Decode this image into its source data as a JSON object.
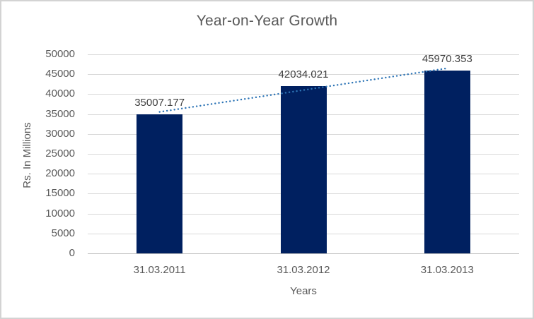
{
  "chart": {
    "colors": {
      "bar": "#002060",
      "trendline": "#2e75b6",
      "title_text": "#595959",
      "axis_text": "#595959",
      "data_label_text": "#404040",
      "gridline": "#d9d9d9",
      "axis_line": "#bfbfbf",
      "frame_border": "#d3d3d3",
      "background": "#ffffff"
    }
  },
  "chart_data": {
    "type": "bar",
    "title": "Year-on-Year Growth",
    "xlabel": "Years",
    "ylabel": "Rs. In Millions",
    "categories": [
      "31.03.2011",
      "31.03.2012",
      "31.03.2013"
    ],
    "values": [
      35007.177,
      42034.021,
      45970.353
    ],
    "data_labels": [
      "35007.177",
      "42034.021",
      "45970.353"
    ],
    "ylim": [
      0,
      50000
    ],
    "ytick_step": 5000,
    "ytick_labels": [
      "0",
      "5000",
      "10000",
      "15000",
      "20000",
      "25000",
      "30000",
      "35000",
      "40000",
      "45000",
      "50000"
    ],
    "grid": true,
    "legend": false,
    "trendline": {
      "type": "linear",
      "style": "dotted",
      "spans": "first bar top to last bar top"
    }
  }
}
